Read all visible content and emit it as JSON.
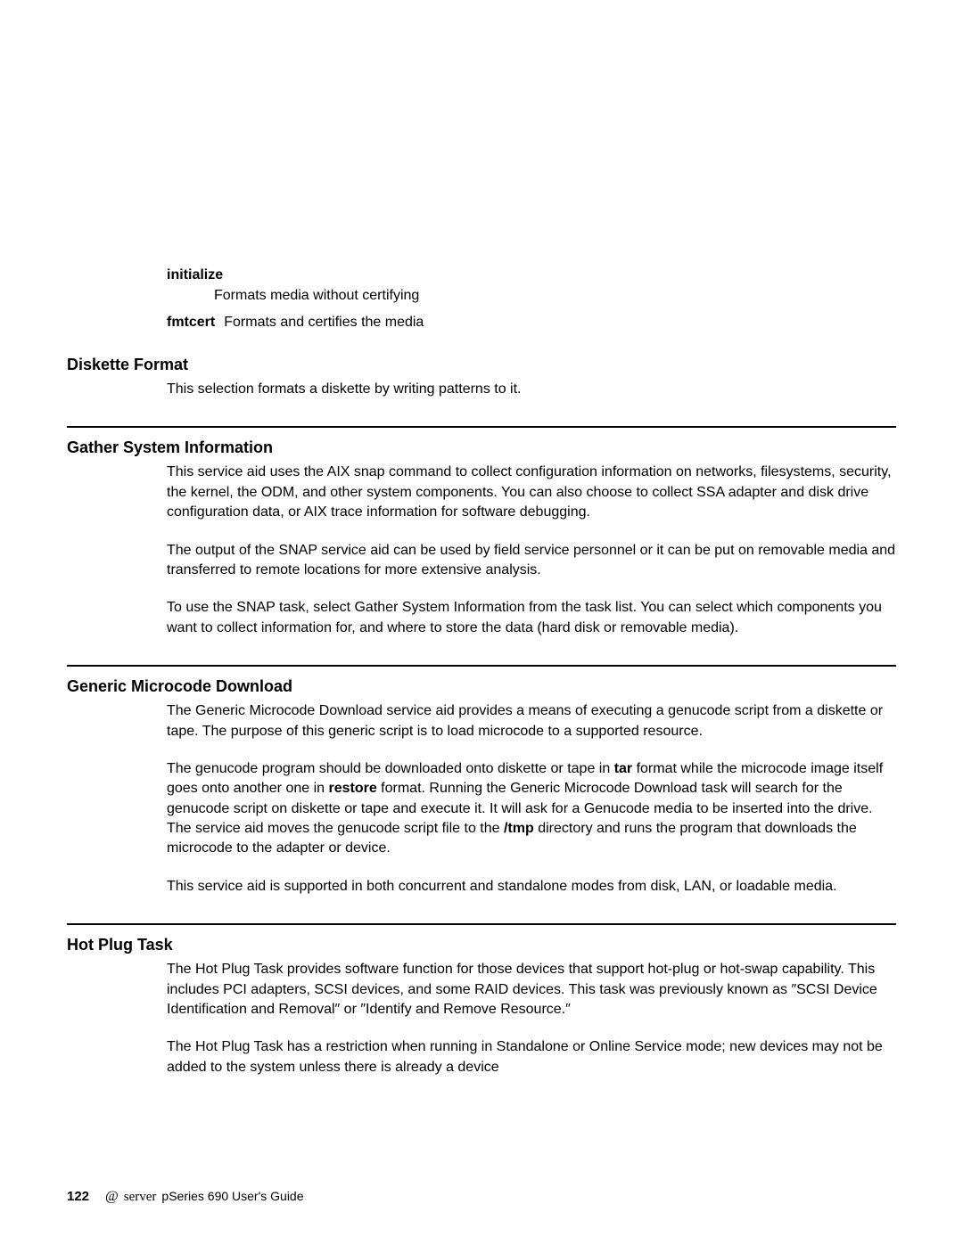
{
  "definitions": {
    "initialize": {
      "term": "initialize",
      "desc": "Formats media without certifying"
    },
    "fmtcert": {
      "term": "fmtcert",
      "desc": "Formats and certifies the media"
    }
  },
  "sections": {
    "diskette": {
      "heading": "Diskette Format",
      "p1": "This selection formats a diskette by writing patterns to it."
    },
    "gather": {
      "heading": "Gather System Information",
      "p1": "This service aid uses the AIX snap command to collect configuration information on networks, filesystems, security, the kernel, the ODM, and other system components. You can also choose to collect SSA adapter and disk drive configuration data, or AIX trace information for software debugging.",
      "p2": "The output of the SNAP service aid can be used by field service personnel or it can be put on removable media and transferred to remote locations for more extensive analysis.",
      "p3": "To use the SNAP task, select Gather System Information from the task list. You can select which components you want to collect information for, and where to store the data (hard disk or removable media)."
    },
    "generic": {
      "heading": "Generic Microcode Download",
      "p1": "The Generic Microcode Download service aid provides a means of executing a genucode script from a diskette or tape. The purpose of this generic script is to load microcode to a supported resource.",
      "p2_seg1": "The genucode program should be downloaded onto diskette or tape in ",
      "p2_bold1": "tar",
      "p2_seg2": " format while the microcode image itself goes onto another one in ",
      "p2_bold2": "restore",
      "p2_seg3": " format. Running the Generic Microcode Download task will search for the genucode script on diskette or tape and execute it. It will ask for a Genucode media to be inserted into the drive. The service aid moves the genucode script file to the ",
      "p2_bold3": "/tmp",
      "p2_seg4": " directory and runs the program that downloads the microcode to the adapter or device.",
      "p3": "This service aid is supported in both concurrent and standalone modes from disk, LAN, or loadable media."
    },
    "hotplug": {
      "heading": "Hot Plug Task",
      "p1": "The Hot Plug Task provides software function for those devices that support hot-plug or hot-swap capability. This includes PCI adapters, SCSI devices, and some RAID devices. This task was previously known as ″SCSI Device Identification and Removal″ or ″Identify and Remove Resource.″",
      "p2": "The Hot Plug Task has a restriction when running in Standalone or Online Service mode; new devices may not be added to the system unless there is already a device"
    }
  },
  "footer": {
    "page": "122",
    "at": "@",
    "brand": "server",
    "guide": "pSeries 690 User's Guide"
  },
  "colors": {
    "background": "#ffffff",
    "text": "#000000",
    "rule": "#000000"
  },
  "typography": {
    "body_fontsize": 16,
    "heading_fontsize": 18,
    "footer_fontsize": 14,
    "line_height": 1.4
  }
}
